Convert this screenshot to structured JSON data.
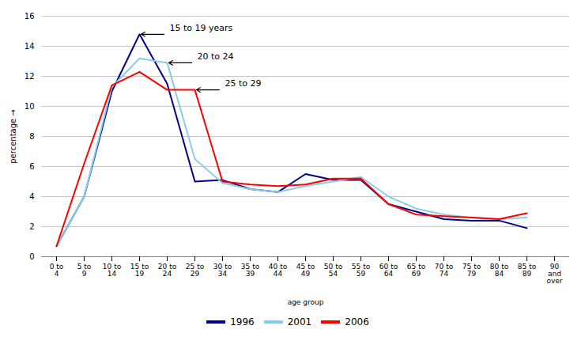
{
  "chart_data": {
    "type": "line",
    "xlabel": "age group",
    "ylabel": "percentage",
    "categories": [
      "0 to\n4",
      "5 to\n9",
      "10 to\n14",
      "15 to\n19",
      "20 to\n24",
      "25 to\n29",
      "30 to\n34",
      "35 to\n39",
      "40 to\n44",
      "45 to\n49",
      "50 to\n54",
      "55 to\n59",
      "60 to\n64",
      "65 to\n69",
      "70 to\n74",
      "75 to\n79",
      "80 to\n84",
      "85 to\n89",
      "90\nand\nover"
    ],
    "series": [
      {
        "name": "1996",
        "color": "#00008B",
        "values": [
          0.7,
          4.0,
          11.0,
          14.8,
          11.5,
          5.0,
          5.1,
          4.5,
          4.3,
          5.5,
          5.1,
          5.1,
          3.5,
          3.0,
          2.5,
          2.4,
          2.4,
          1.9,
          null
        ]
      },
      {
        "name": "2001",
        "color": "#87CEEB",
        "values": [
          0.7,
          4.0,
          11.3,
          13.2,
          12.9,
          6.5,
          4.9,
          4.5,
          4.3,
          4.7,
          5.0,
          5.3,
          4.0,
          3.2,
          2.8,
          2.6,
          2.5,
          2.6,
          null
        ]
      },
      {
        "name": "2006",
        "color": "#FF0000",
        "values": [
          0.7,
          6.2,
          11.4,
          12.3,
          11.1,
          11.1,
          5.0,
          4.8,
          4.7,
          4.8,
          5.2,
          5.2,
          3.5,
          2.8,
          2.7,
          2.6,
          2.5,
          2.9,
          null
        ]
      }
    ],
    "ylim": [
      0,
      16
    ],
    "yticks": [
      0,
      2,
      4,
      6,
      8,
      10,
      12,
      14,
      16
    ],
    "grid": true,
    "legend": "bottom",
    "annotations": [
      {
        "text": "15 to 19 years",
        "series": "1996",
        "x": "15 to\n19"
      },
      {
        "text": "20 to 24",
        "series": "2001",
        "x": "20 to\n24"
      },
      {
        "text": "25 to 29",
        "series": "2006",
        "x": "25 to\n29"
      }
    ]
  }
}
